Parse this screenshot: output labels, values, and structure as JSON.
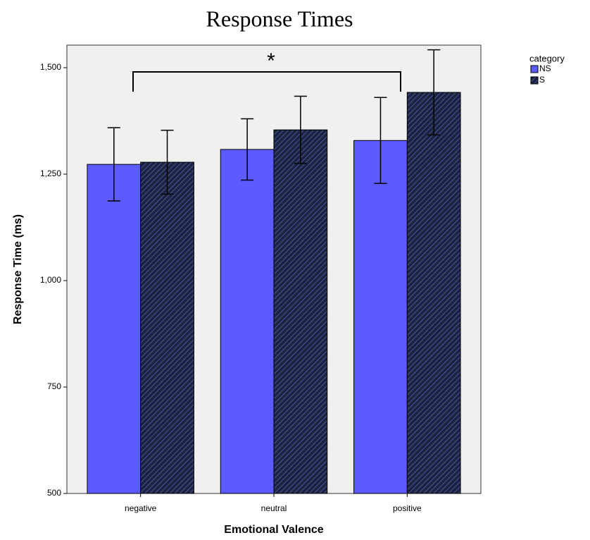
{
  "chart_data": {
    "type": "bar",
    "title": "Response Times",
    "x_label": "Emotional Valence",
    "y_label": "Response Time (ms)",
    "categories": [
      "negative",
      "neutral",
      "positive"
    ],
    "series": [
      {
        "name": "NS",
        "color": "#5b5bff",
        "values": [
          1273,
          1308,
          1329
        ],
        "errors": [
          86,
          72,
          101
        ]
      },
      {
        "name": "S",
        "color": "#1c2340",
        "hatch": true,
        "values": [
          1278,
          1354,
          1442
        ],
        "errors": [
          75,
          79,
          100
        ]
      }
    ],
    "ylim": [
      500,
      1553
    ],
    "yticks": [
      500,
      750,
      {
        "value": 1000,
        "label": "1,000"
      },
      {
        "value": 1250,
        "label": "1,250"
      },
      {
        "value": 1500,
        "label": "1,500"
      }
    ],
    "legend_title": "category",
    "legend_position": "right",
    "annotation": "*"
  }
}
